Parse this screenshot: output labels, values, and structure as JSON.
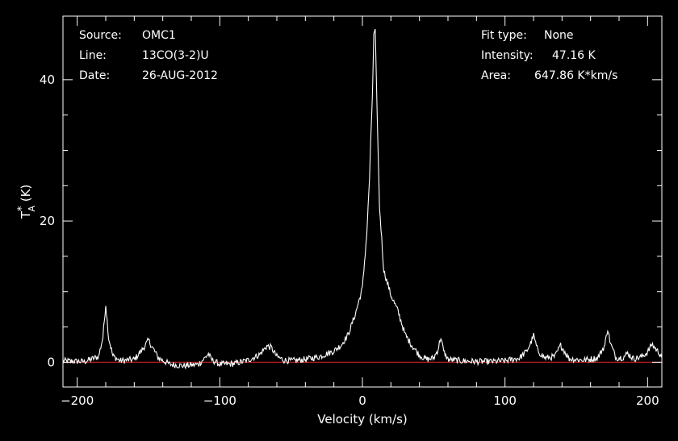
{
  "info_left": {
    "source_label": "Source:",
    "source_value": "OMC1",
    "line_label": "Line:",
    "line_value": "13CO(3-2)U",
    "date_label": "Date:",
    "date_value": "26-AUG-2012"
  },
  "info_right": {
    "fit_label": "Fit type:",
    "fit_value": "None",
    "intensity_label": "Intensity:",
    "intensity_value": "47.16 K",
    "area_label": "Area:",
    "area_value": "647.86 K*km/s"
  },
  "chart_data": {
    "type": "line",
    "xlabel": "Velocity (km/s)",
    "ylabel": "T*A (K)",
    "xlim": [
      -210,
      210
    ],
    "ylim": [
      -3.5,
      49
    ],
    "x_ticks": [
      -200,
      -100,
      0,
      100,
      200
    ],
    "y_ticks": [
      0,
      20,
      40
    ],
    "grid": false,
    "baseline": 0,
    "colors": {
      "background": "#000000",
      "spectrum": "#ffffff",
      "baseline": "#cc1f1f",
      "axes": "#ffffff"
    },
    "series": [
      {
        "x": [
          -210,
          -195,
          -185,
          -182,
          -180,
          -178,
          -175,
          -170,
          -160,
          -155,
          -150,
          -147,
          -143,
          -135,
          -125,
          -115,
          -110,
          -108,
          -106,
          -100,
          -90,
          -80,
          -72,
          -67,
          -64,
          -60,
          -55,
          -50,
          -40,
          -30,
          -25,
          -20,
          -15,
          -10,
          -5,
          0,
          3,
          5,
          7,
          8,
          9,
          10,
          12,
          15,
          20,
          25,
          30,
          35,
          40,
          45,
          50,
          53,
          55,
          57,
          60,
          70,
          80,
          90,
          100,
          110,
          115,
          118,
          120,
          123,
          128,
          135,
          139,
          141,
          145,
          155,
          165,
          170,
          172,
          174,
          178,
          183,
          186,
          190,
          195,
          200,
          203,
          206,
          210
        ],
        "y": [
          0.2,
          0.1,
          0.8,
          3.5,
          8.2,
          3.5,
          0.9,
          0.2,
          0.4,
          1.6,
          3.1,
          2.0,
          0.6,
          -0.3,
          -0.5,
          -0.3,
          0.7,
          1.2,
          0.4,
          -0.3,
          -0.2,
          0.3,
          1.1,
          2.3,
          2.1,
          0.8,
          0.3,
          0.2,
          0.4,
          0.8,
          1.2,
          1.6,
          2.4,
          3.9,
          6.8,
          10.5,
          18.0,
          26.0,
          38.0,
          46.5,
          47.16,
          38.0,
          22.0,
          13.0,
          9.5,
          7.2,
          3.9,
          2.3,
          1.0,
          0.4,
          0.6,
          1.8,
          3.6,
          1.5,
          0.4,
          0.2,
          0.1,
          0.1,
          0.2,
          0.6,
          1.5,
          2.7,
          3.8,
          1.6,
          0.6,
          0.8,
          2.4,
          1.8,
          0.5,
          0.3,
          0.6,
          2.4,
          4.8,
          2.6,
          0.6,
          0.7,
          1.3,
          0.5,
          0.7,
          1.4,
          2.6,
          1.8,
          0.9
        ]
      }
    ]
  }
}
